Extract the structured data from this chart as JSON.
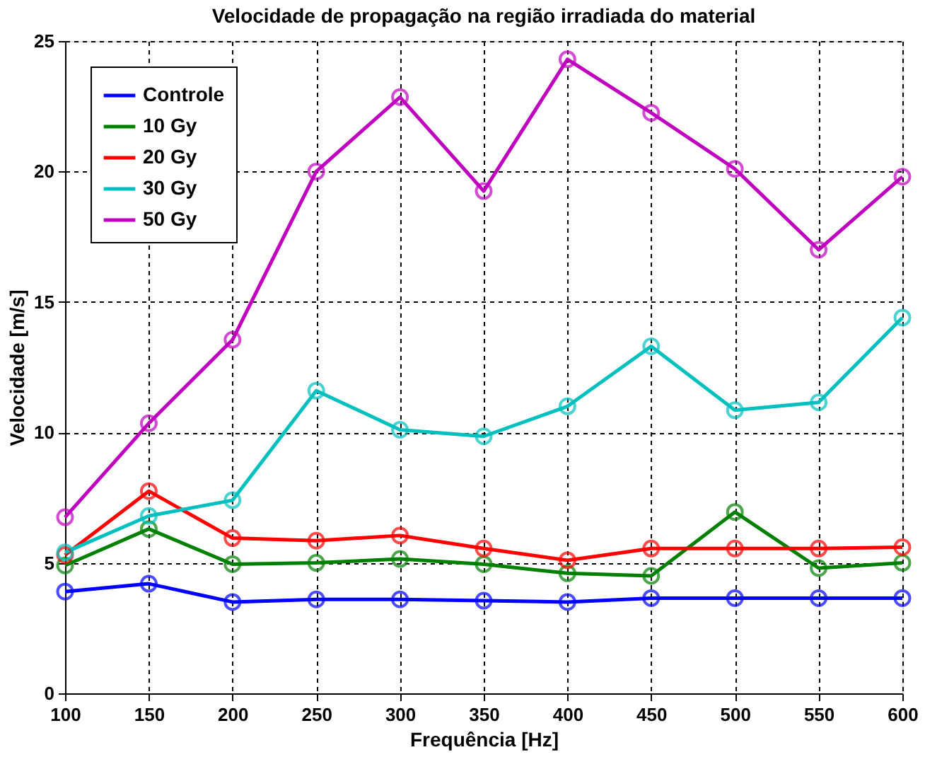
{
  "chart_data": {
    "type": "line",
    "title": "Velocidade de propagação na região irradiada do material",
    "xlabel": "Frequência [Hz]",
    "ylabel": "Velocidade [m/s]",
    "x": [
      100,
      150,
      200,
      250,
      300,
      350,
      400,
      450,
      500,
      550,
      600
    ],
    "series": [
      {
        "name": "Controle",
        "color": "#0000ff",
        "values": [
          3.9,
          4.2,
          3.5,
          3.6,
          3.6,
          3.55,
          3.5,
          3.65,
          3.65,
          3.65,
          3.65
        ]
      },
      {
        "name": "10 Gy",
        "color": "#008000",
        "values": [
          4.9,
          6.3,
          4.95,
          5.0,
          5.15,
          4.95,
          4.6,
          4.5,
          6.95,
          4.8,
          5.0
        ]
      },
      {
        "name": "20 Gy",
        "color": "#ff0000",
        "values": [
          5.3,
          7.75,
          5.95,
          5.85,
          6.05,
          5.55,
          5.1,
          5.55,
          5.55,
          5.55,
          5.6
        ]
      },
      {
        "name": "30 Gy",
        "color": "#00bfbf",
        "values": [
          5.4,
          6.8,
          7.4,
          11.6,
          10.1,
          9.85,
          11.0,
          13.3,
          10.85,
          11.15,
          14.4
        ]
      },
      {
        "name": "50 Gy",
        "color": "#bf00bf",
        "values": [
          6.75,
          10.35,
          13.55,
          20.0,
          22.85,
          19.25,
          24.3,
          22.25,
          20.1,
          17.0,
          19.8
        ]
      }
    ],
    "xlim": [
      100,
      600
    ],
    "xticks": [
      100,
      150,
      200,
      250,
      300,
      350,
      400,
      450,
      500,
      550,
      600
    ],
    "ylim": [
      0,
      25
    ],
    "yticks": [
      0,
      5,
      10,
      15,
      20,
      25
    ],
    "grid": true,
    "legend": "top left",
    "marker": "circle",
    "line_style": "solid"
  }
}
